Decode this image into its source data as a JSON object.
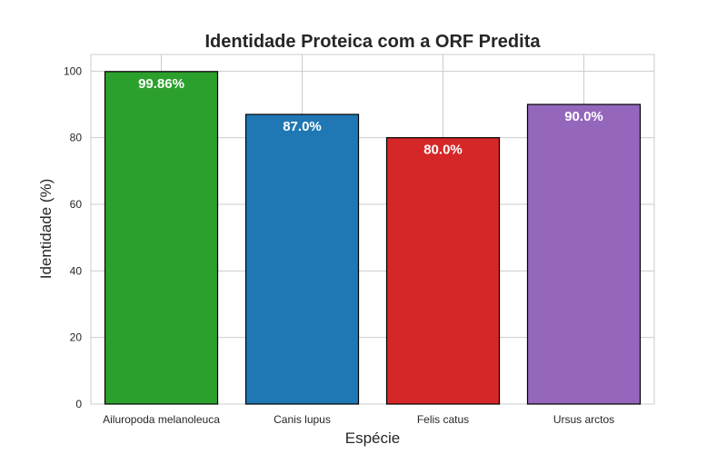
{
  "chart_data": {
    "type": "bar",
    "title": "Identidade Proteica com a ORF Predita",
    "xlabel": "Espécie",
    "ylabel": "Identidade (%)",
    "categories": [
      "Ailuropoda melanoleuca",
      "Canis lupus",
      "Felis catus",
      "Ursus arctos"
    ],
    "values": [
      99.86,
      87.0,
      80.0,
      90.0
    ],
    "data_labels": [
      "99.86%",
      "87.0%",
      "80.0%",
      "90.0%"
    ],
    "colors": [
      "#2ca02c",
      "#1f77b4",
      "#d62728",
      "#9467bd"
    ],
    "ylim": [
      0,
      105
    ],
    "yticks": [
      0,
      20,
      40,
      60,
      80,
      100
    ],
    "grid": true,
    "legend": "none"
  }
}
